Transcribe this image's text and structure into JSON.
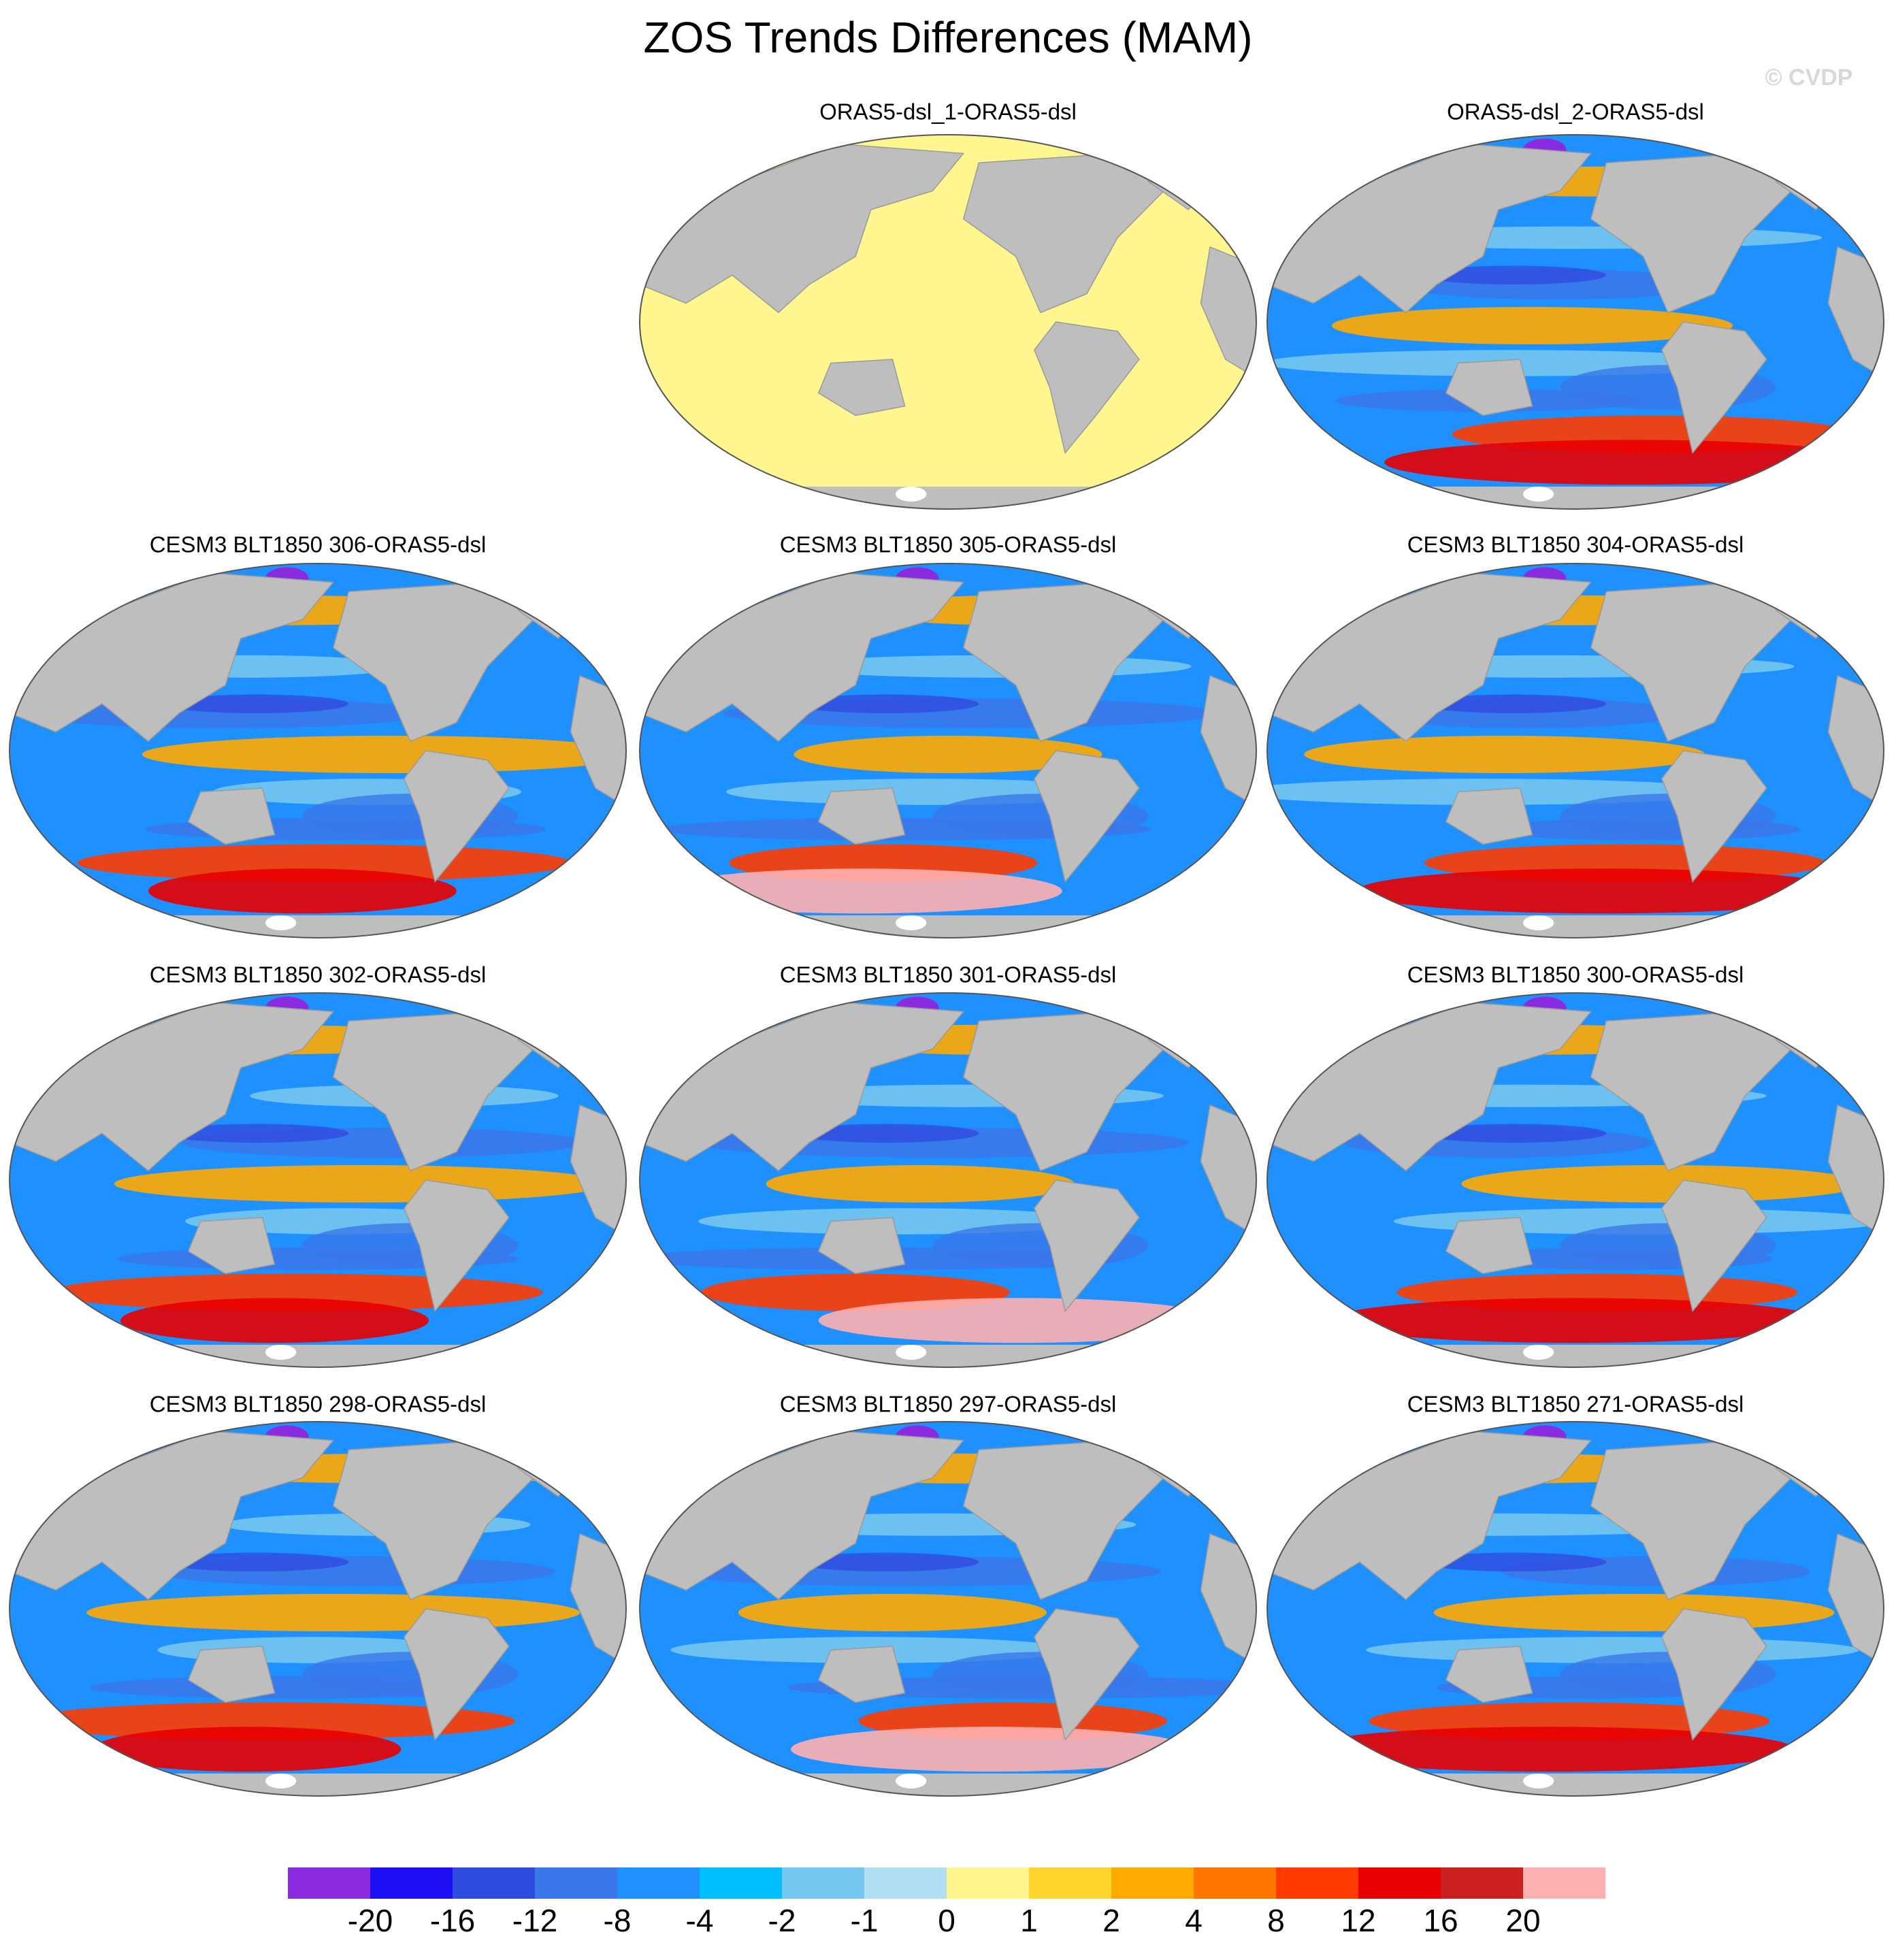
{
  "title": "ZOS Trends Differences (MAM)",
  "watermark": "© CVDP",
  "panels": [
    {
      "title": "ORAS5-dsl_1-ORAS5-dsl"
    },
    {
      "title": "ORAS5-dsl_2-ORAS5-dsl"
    },
    {
      "title": "CESM3 BLT1850 306-ORAS5-dsl"
    },
    {
      "title": "CESM3 BLT1850 305-ORAS5-dsl"
    },
    {
      "title": "CESM3 BLT1850 304-ORAS5-dsl"
    },
    {
      "title": "CESM3 BLT1850 302-ORAS5-dsl"
    },
    {
      "title": "CESM3 BLT1850 301-ORAS5-dsl"
    },
    {
      "title": "CESM3 BLT1850 300-ORAS5-dsl"
    },
    {
      "title": "CESM3 BLT1850 298-ORAS5-dsl"
    },
    {
      "title": "CESM3 BLT1850 297-ORAS5-dsl"
    },
    {
      "title": "CESM3 BLT1850 271-ORAS5-dsl"
    }
  ],
  "colorbar": {
    "colors": [
      "#8a2be2",
      "#1e10f5",
      "#2f4be0",
      "#3a78ea",
      "#1e90ff",
      "#00bfff",
      "#75c7f0",
      "#b0dff2",
      "#fff68f",
      "#ffd52e",
      "#ffaa00",
      "#ff7700",
      "#ff3b00",
      "#e80000",
      "#cc1f1f",
      "#ffb0b0"
    ],
    "levels": [
      -20,
      -16,
      -12,
      -8,
      -4,
      -2,
      -1,
      0,
      1,
      2,
      4,
      8,
      12,
      16,
      20
    ]
  }
}
